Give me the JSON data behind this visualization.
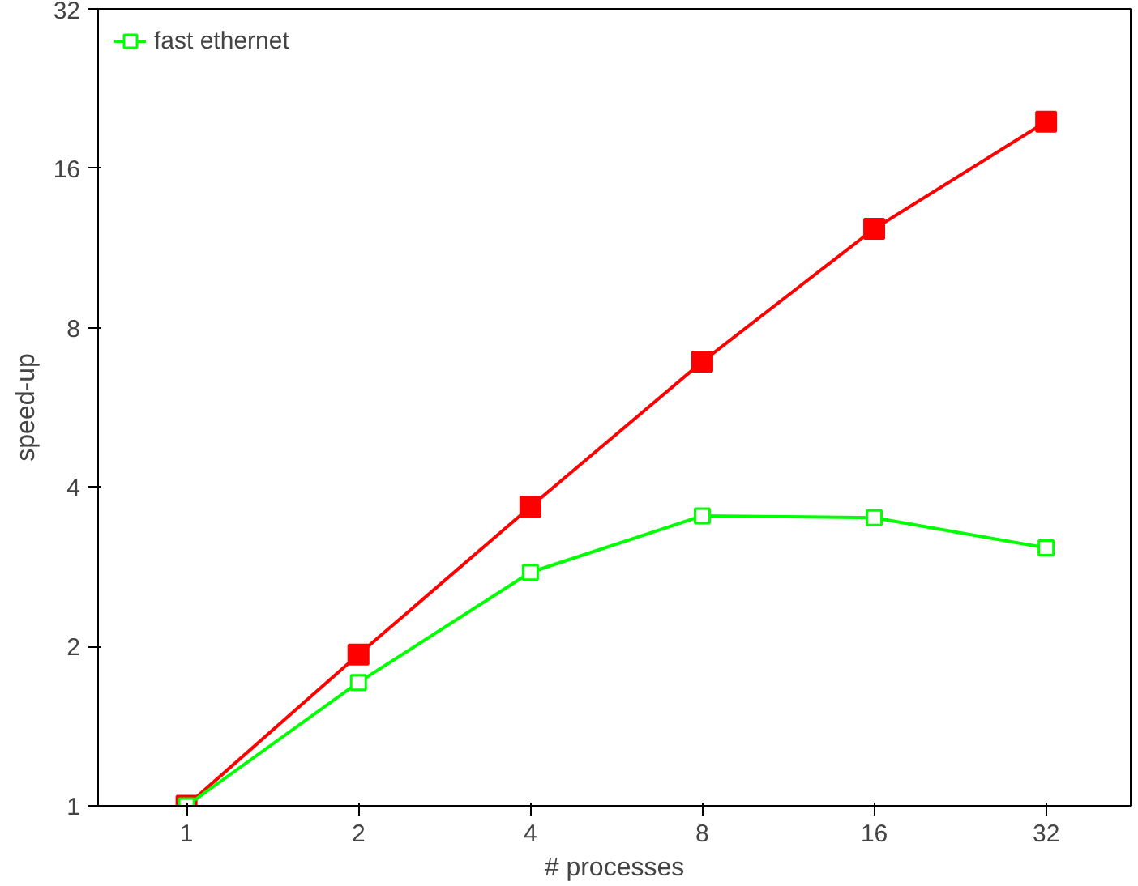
{
  "chart_data": {
    "type": "line",
    "xlabel": "# processes",
    "ylabel": "speed-up",
    "log": "xy",
    "x": [
      1,
      2,
      4,
      8,
      16,
      32
    ],
    "xlim": [
      0.7,
      45
    ],
    "ylim": [
      1,
      32
    ],
    "xticks": [
      1,
      2,
      4,
      8,
      16,
      32
    ],
    "yticks": [
      1,
      2,
      4,
      8,
      16,
      32
    ],
    "grid": false,
    "legend": "top left",
    "line_style": "solid",
    "series": [
      {
        "color": "#ff0000",
        "marker": "square",
        "values": [
          1,
          1.93,
          3.67,
          6.9,
          12.3,
          19.6
        ]
      },
      {
        "name": "fast ethernet",
        "color": "#00ff00",
        "marker": "square",
        "values": [
          1,
          1.71,
          2.76,
          3.53,
          3.5,
          3.07
        ]
      }
    ]
  }
}
